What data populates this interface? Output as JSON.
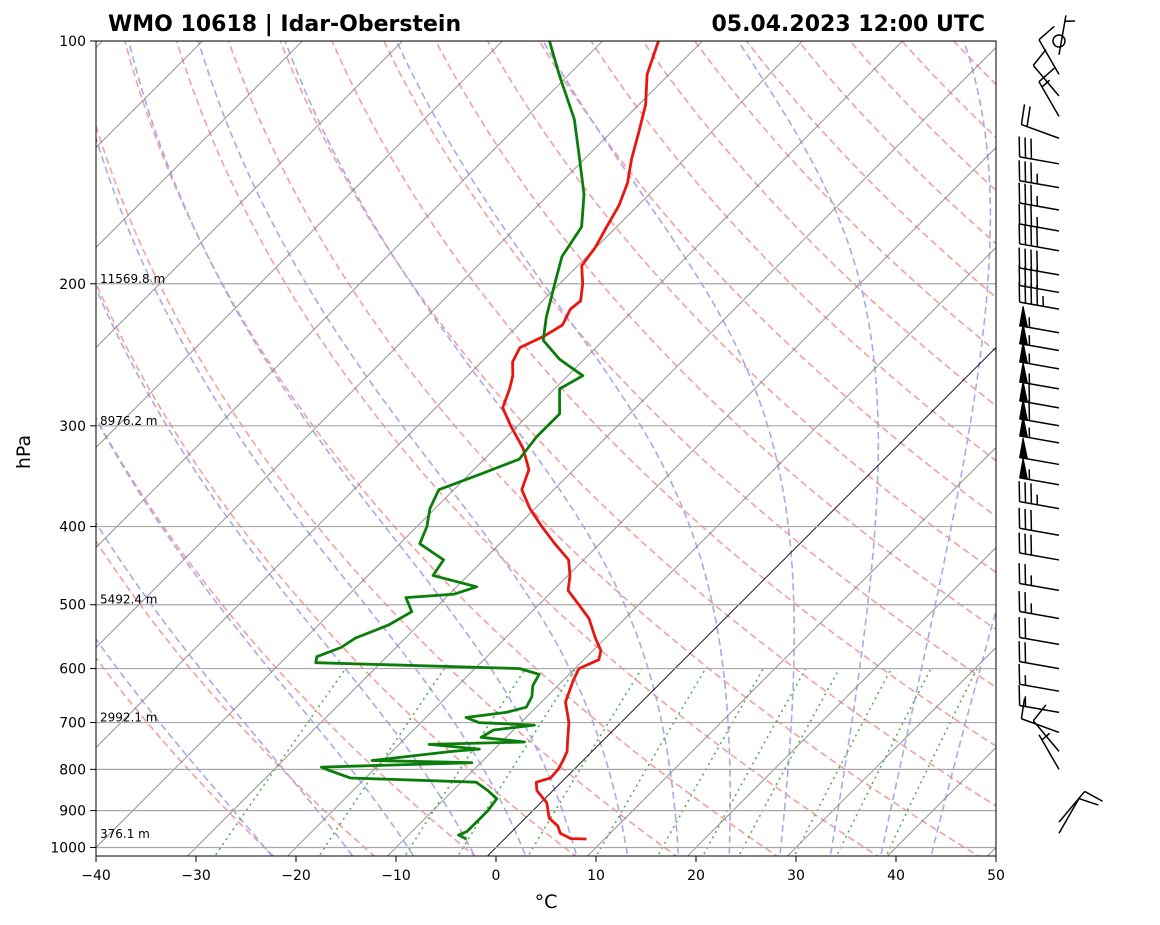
{
  "header": {
    "title_left": "WMO 10618 | Idar-Oberstein",
    "title_right": "05.04.2023 12:00 UTC"
  },
  "chart_data": {
    "type": "line",
    "diagram": "skew-T log-P",
    "xlabel": "°C",
    "ylabel": "hPa",
    "xlim": [
      -40,
      50
    ],
    "ylim": [
      1030,
      100
    ],
    "x_ticks": [
      "−40",
      "−30",
      "−20",
      "−10",
      "0",
      "10",
      "20",
      "30",
      "40",
      "50"
    ],
    "x_tick_values": [
      -40,
      -30,
      -20,
      -10,
      0,
      10,
      20,
      30,
      40,
      50
    ],
    "y_ticks": [
      "100",
      "200",
      "300",
      "400",
      "500",
      "600",
      "700",
      "800",
      "900",
      "1000"
    ],
    "y_tick_values": [
      100,
      200,
      300,
      400,
      500,
      600,
      700,
      800,
      900,
      1000
    ],
    "height_labels": [
      {
        "p": 200,
        "text": "11569.8 m"
      },
      {
        "p": 300,
        "text": "8976.2 m"
      },
      {
        "p": 500,
        "text": "5492.4 m"
      },
      {
        "p": 700,
        "text": "2992.1 m"
      },
      {
        "p": 976,
        "text": "376.1 m"
      }
    ],
    "colors": {
      "temperature": "#e8160f",
      "dewpoint": "#0a7d0a",
      "dry_adiabats": "#f2a0a0",
      "moist_adiabats": "#a8a8ee",
      "mixing_ratio": "#52b052",
      "isotherms": "#808080",
      "isobars": "#a9a9a9"
    },
    "series": [
      {
        "name": "temperature",
        "points": [
          {
            "p": 976,
            "t": 8.2
          },
          {
            "p": 975,
            "t": 6.6
          },
          {
            "p": 960,
            "t": 5.0
          },
          {
            "p": 940,
            "t": 4.0
          },
          {
            "p": 920,
            "t": 2.4
          },
          {
            "p": 880,
            "t": 0.6
          },
          {
            "p": 850,
            "t": -1.6
          },
          {
            "p": 830,
            "t": -2.5
          },
          {
            "p": 820,
            "t": -1.5
          },
          {
            "p": 800,
            "t": -1.6
          },
          {
            "p": 780,
            "t": -2.0
          },
          {
            "p": 760,
            "t": -2.5
          },
          {
            "p": 740,
            "t": -3.4
          },
          {
            "p": 700,
            "t": -5.2
          },
          {
            "p": 660,
            "t": -7.6
          },
          {
            "p": 620,
            "t": -9.0
          },
          {
            "p": 600,
            "t": -9.6
          },
          {
            "p": 585,
            "t": -8.5
          },
          {
            "p": 570,
            "t": -9.2
          },
          {
            "p": 550,
            "t": -11.0
          },
          {
            "p": 520,
            "t": -13.6
          },
          {
            "p": 500,
            "t": -16.0
          },
          {
            "p": 480,
            "t": -18.5
          },
          {
            "p": 460,
            "t": -19.8
          },
          {
            "p": 440,
            "t": -21.5
          },
          {
            "p": 420,
            "t": -24.5
          },
          {
            "p": 400,
            "t": -27.5
          },
          {
            "p": 380,
            "t": -30.5
          },
          {
            "p": 360,
            "t": -33.2
          },
          {
            "p": 340,
            "t": -34.5
          },
          {
            "p": 320,
            "t": -37.2
          },
          {
            "p": 300,
            "t": -40.7
          },
          {
            "p": 285,
            "t": -43.3
          },
          {
            "p": 270,
            "t": -44.5
          },
          {
            "p": 260,
            "t": -45.5
          },
          {
            "p": 250,
            "t": -46.9
          },
          {
            "p": 240,
            "t": -47.6
          },
          {
            "p": 232,
            "t": -46.3
          },
          {
            "p": 225,
            "t": -45.6
          },
          {
            "p": 215,
            "t": -46.4
          },
          {
            "p": 210,
            "t": -46.2
          },
          {
            "p": 200,
            "t": -47.7
          },
          {
            "p": 190,
            "t": -49.6
          },
          {
            "p": 180,
            "t": -50.1
          },
          {
            "p": 170,
            "t": -51.0
          },
          {
            "p": 160,
            "t": -51.9
          },
          {
            "p": 150,
            "t": -53.3
          },
          {
            "p": 140,
            "t": -55.3
          },
          {
            "p": 130,
            "t": -57.2
          },
          {
            "p": 120,
            "t": -59.3
          },
          {
            "p": 110,
            "t": -62.2
          },
          {
            "p": 100,
            "t": -64.4
          }
        ]
      },
      {
        "name": "dewpoint",
        "points": [
          {
            "p": 976,
            "t": -3.8
          },
          {
            "p": 965,
            "t": -5.0
          },
          {
            "p": 955,
            "t": -4.5
          },
          {
            "p": 930,
            "t": -4.5
          },
          {
            "p": 900,
            "t": -4.5
          },
          {
            "p": 870,
            "t": -4.8
          },
          {
            "p": 850,
            "t": -6.5
          },
          {
            "p": 830,
            "t": -8.5
          },
          {
            "p": 820,
            "t": -21.5
          },
          {
            "p": 800,
            "t": -24.8
          },
          {
            "p": 795,
            "t": -25.5
          },
          {
            "p": 785,
            "t": -10.9
          },
          {
            "p": 780,
            "t": -21.1
          },
          {
            "p": 760,
            "t": -14.0
          },
          {
            "p": 755,
            "t": -11.5
          },
          {
            "p": 745,
            "t": -17.0
          },
          {
            "p": 740,
            "t": -7.7
          },
          {
            "p": 730,
            "t": -12.5
          },
          {
            "p": 715,
            "t": -12.0
          },
          {
            "p": 705,
            "t": -8.4
          },
          {
            "p": 700,
            "t": -14.2
          },
          {
            "p": 690,
            "t": -16.0
          },
          {
            "p": 680,
            "t": -12.5
          },
          {
            "p": 670,
            "t": -11.0
          },
          {
            "p": 650,
            "t": -11.5
          },
          {
            "p": 630,
            "t": -12.5
          },
          {
            "p": 610,
            "t": -13.0
          },
          {
            "p": 600,
            "t": -15.5
          },
          {
            "p": 590,
            "t": -36.5
          },
          {
            "p": 580,
            "t": -37.0
          },
          {
            "p": 565,
            "t": -35.5
          },
          {
            "p": 550,
            "t": -35.0
          },
          {
            "p": 530,
            "t": -33.0
          },
          {
            "p": 510,
            "t": -32.0
          },
          {
            "p": 490,
            "t": -34.0
          },
          {
            "p": 485,
            "t": -29.5
          },
          {
            "p": 475,
            "t": -28.0
          },
          {
            "p": 460,
            "t": -33.5
          },
          {
            "p": 440,
            "t": -34.0
          },
          {
            "p": 420,
            "t": -38.0
          },
          {
            "p": 400,
            "t": -39.0
          },
          {
            "p": 380,
            "t": -40.5
          },
          {
            "p": 360,
            "t": -41.5
          },
          {
            "p": 345,
            "t": -39.0
          },
          {
            "p": 330,
            "t": -36.5
          },
          {
            "p": 310,
            "t": -37.0
          },
          {
            "p": 290,
            "t": -37.0
          },
          {
            "p": 270,
            "t": -39.5
          },
          {
            "p": 260,
            "t": -38.5
          },
          {
            "p": 248,
            "t": -42.5
          },
          {
            "p": 235,
            "t": -46.0
          },
          {
            "p": 220,
            "t": -48.0
          },
          {
            "p": 200,
            "t": -50.5
          },
          {
            "p": 185,
            "t": -52.5
          },
          {
            "p": 170,
            "t": -53.5
          },
          {
            "p": 155,
            "t": -56.5
          },
          {
            "p": 140,
            "t": -60.5
          },
          {
            "p": 125,
            "t": -65.0
          },
          {
            "p": 110,
            "t": -71.0
          },
          {
            "p": 100,
            "t": -75.3
          }
        ]
      }
    ],
    "wind_barbs": [
      {
        "p": 960,
        "dir": 30,
        "speed": 10
      },
      {
        "p": 930,
        "dir": 40,
        "speed": 10
      },
      {
        "p": 800,
        "dir": 330,
        "speed": 5
      },
      {
        "p": 760,
        "dir": 320,
        "speed": 10
      },
      {
        "p": 720,
        "dir": 290,
        "speed": 10
      },
      {
        "p": 680,
        "dir": 280,
        "speed": 15
      },
      {
        "p": 640,
        "dir": 280,
        "speed": 15
      },
      {
        "p": 600,
        "dir": 280,
        "speed": 20
      },
      {
        "p": 560,
        "dir": 280,
        "speed": 20
      },
      {
        "p": 520,
        "dir": 280,
        "speed": 25
      },
      {
        "p": 480,
        "dir": 280,
        "speed": 25
      },
      {
        "p": 440,
        "dir": 280,
        "speed": 30
      },
      {
        "p": 410,
        "dir": 280,
        "speed": 30
      },
      {
        "p": 380,
        "dir": 280,
        "speed": 35
      },
      {
        "p": 355,
        "dir": 280,
        "speed": 55
      },
      {
        "p": 335,
        "dir": 280,
        "speed": 50
      },
      {
        "p": 315,
        "dir": 280,
        "speed": 55
      },
      {
        "p": 300,
        "dir": 280,
        "speed": 60
      },
      {
        "p": 285,
        "dir": 280,
        "speed": 60
      },
      {
        "p": 270,
        "dir": 280,
        "speed": 55
      },
      {
        "p": 255,
        "dir": 280,
        "speed": 55
      },
      {
        "p": 242,
        "dir": 280,
        "speed": 55
      },
      {
        "p": 230,
        "dir": 280,
        "speed": 55
      },
      {
        "p": 215,
        "dir": 280,
        "speed": 45
      },
      {
        "p": 205,
        "dir": 280,
        "speed": 40
      },
      {
        "p": 195,
        "dir": 280,
        "speed": 40
      },
      {
        "p": 182,
        "dir": 280,
        "speed": 40
      },
      {
        "p": 172,
        "dir": 280,
        "speed": 35
      },
      {
        "p": 162,
        "dir": 280,
        "speed": 35
      },
      {
        "p": 152,
        "dir": 280,
        "speed": 35
      },
      {
        "p": 142,
        "dir": 280,
        "speed": 30
      },
      {
        "p": 132,
        "dir": 290,
        "speed": 20
      },
      {
        "p": 124,
        "dir": 330,
        "speed": 15
      },
      {
        "p": 117,
        "dir": 320,
        "speed": 10
      },
      {
        "p": 110,
        "dir": 330,
        "speed": 10
      },
      {
        "p": 104,
        "dir": 10,
        "speed": 5
      },
      {
        "p": 100,
        "dir": 0,
        "speed": 0
      }
    ]
  }
}
